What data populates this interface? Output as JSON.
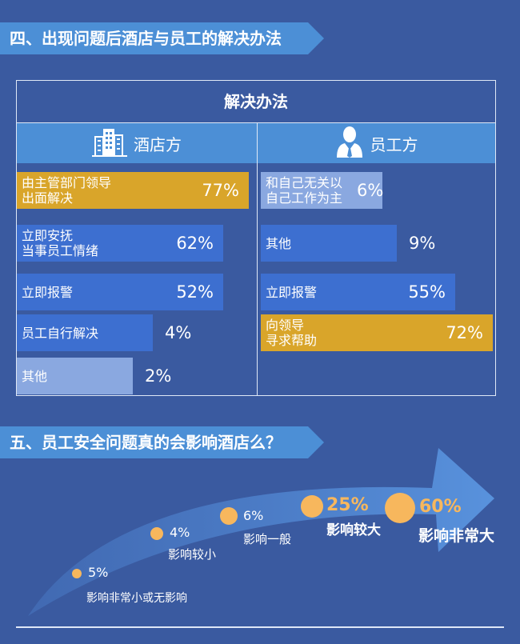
{
  "section4": {
    "title": "四、出现问题后酒店与员工的解决办法"
  },
  "section5": {
    "title": "五、员工安全问题真的会影响酒店么？"
  },
  "colors": {
    "blue_bar": "#3d6fd0",
    "light_bar": "#8aa8e0",
    "gold_bar": "#d9a52a",
    "header": "#4c8fd6",
    "bubble": "#f7b75d"
  },
  "chart_data": [
    {
      "type": "bar",
      "title": "解决办法",
      "series": [
        {
          "name": "酒店方",
          "icon": "building-icon",
          "categories": [
            "由主管部门领导\n出面解决",
            "立即安抚\n当事员工情绪",
            "立即报警",
            "员工自行解决",
            "其他"
          ],
          "values": [
            77,
            62,
            52,
            4,
            2
          ],
          "labels": [
            "77%",
            "62%",
            "52%",
            "4%",
            "2%"
          ]
        },
        {
          "name": "员工方",
          "icon": "employee-icon",
          "categories": [
            "和自己无关以\n自己工作为主",
            "其他",
            "立即报警",
            "向领导\n寻求帮助"
          ],
          "values": [
            6,
            9,
            55,
            72
          ],
          "labels": [
            "6%",
            "9%",
            "55%",
            "72%"
          ]
        }
      ]
    },
    {
      "type": "scatter",
      "categories": [
        "影响非常小或无影响",
        "影响较小",
        "影响一般",
        "影响较大",
        "影响非常大"
      ],
      "values": [
        5,
        4,
        6,
        25,
        60
      ],
      "labels": [
        "5%",
        "4%",
        "6%",
        "25%",
        "60%"
      ]
    }
  ]
}
